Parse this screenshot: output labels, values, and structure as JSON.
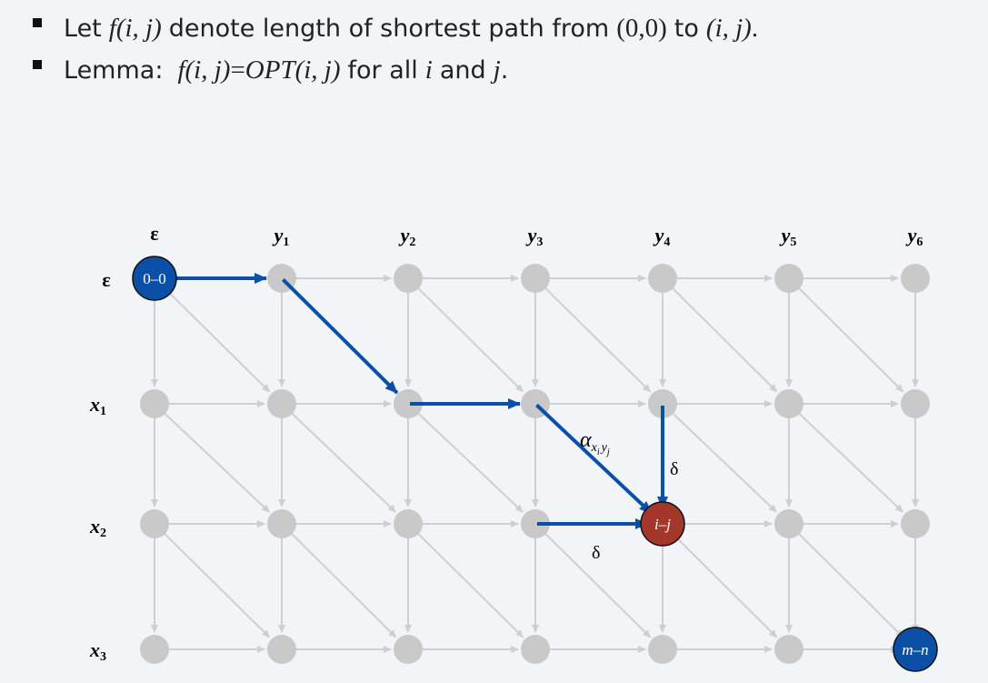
{
  "bullets": [
    {
      "prefix": "Let",
      "f_expr": "f(i, j)",
      "middle": "denote length of shortest path from",
      "origin": "(0,0)",
      "to": "to",
      "dest": "(i, j)",
      "end": "."
    },
    {
      "prefix": "Lemma:",
      "lhs": "f(i, j)",
      "eq": "=",
      "rhs": "OPT(i, j)",
      "middle": "for all",
      "var_i": "i",
      "and": "and",
      "var_j": "j",
      "end": "."
    }
  ],
  "col_labels": [
    {
      "base": "ε",
      "sub": ""
    },
    {
      "base": "y",
      "sub": "1"
    },
    {
      "base": "y",
      "sub": "2"
    },
    {
      "base": "y",
      "sub": "3"
    },
    {
      "base": "y",
      "sub": "4"
    },
    {
      "base": "y",
      "sub": "5"
    },
    {
      "base": "y",
      "sub": "6"
    }
  ],
  "row_labels": [
    {
      "base": "ε",
      "sub": ""
    },
    {
      "base": "x",
      "sub": "1"
    },
    {
      "base": "x",
      "sub": "2"
    },
    {
      "base": "x",
      "sub": "3"
    }
  ],
  "special_nodes": {
    "start": {
      "label": "0–0",
      "row": 0,
      "col": 0,
      "color": "#0b4fa6"
    },
    "current": {
      "label": "i–j",
      "row": 2,
      "col": 4,
      "color": "#a3372a"
    },
    "end": {
      "label": "m–n",
      "row": 3,
      "col": 6,
      "color": "#0b4fa6"
    }
  },
  "edge_labels": {
    "diagonal_cost": {
      "base": "α",
      "sub": "x",
      "sub_i": "i",
      "sub_y": "y",
      "sub_j": "j"
    },
    "vertical_cost": "δ",
    "horizontal_cost": "δ"
  },
  "colors": {
    "path": "#0b4fa6",
    "grid": "#cfcfcf",
    "node": "#c9c9c9"
  }
}
